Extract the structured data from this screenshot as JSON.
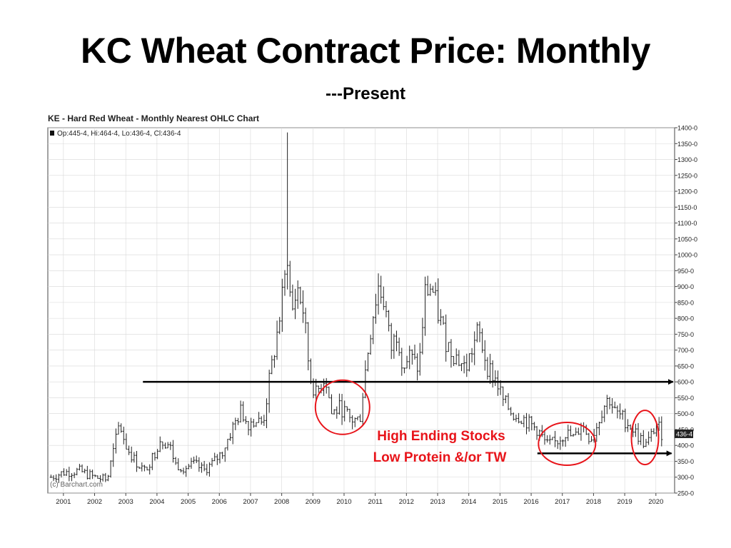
{
  "slide": {
    "title": "KC Wheat Contract Price: Monthly",
    "subtitle": "---Present"
  },
  "colors": {
    "price_bars": "#222222",
    "annotation": "#e8141a",
    "reference_line": "#000000",
    "grid": "#d8d8d8"
  },
  "chart_data": {
    "type": "ohlc",
    "title": "KE - Hard Red Wheat - Monthly Nearest OHLC Chart",
    "legend_text": "Op:445-4, Hi:464-4, Lo:436-4, Cl:436-4",
    "watermark": "(c) Barchart.com",
    "last_price_label": "436-4",
    "xlim": [
      2000.5,
      2020.6
    ],
    "ylim": [
      250,
      1400
    ],
    "x_ticks": [
      2001,
      2002,
      2003,
      2004,
      2005,
      2006,
      2007,
      2008,
      2009,
      2010,
      2011,
      2012,
      2013,
      2014,
      2015,
      2016,
      2017,
      2018,
      2019,
      2020
    ],
    "y_ticks": [
      250,
      300,
      350,
      400,
      450,
      500,
      550,
      600,
      650,
      700,
      750,
      800,
      850,
      900,
      950,
      1000,
      1050,
      1100,
      1150,
      1200,
      1250,
      1300,
      1350,
      1400
    ],
    "y_tick_labels": [
      "250-0",
      "300-0",
      "350-0",
      "400-0",
      "450-0",
      "500-0",
      "550-0",
      "600-0",
      "650-0",
      "700-0",
      "750-0",
      "800-0",
      "850-0",
      "900-0",
      "950-0",
      "1000-0",
      "1050-0",
      "1100-0",
      "1150-0",
      "1200-0",
      "1250-0",
      "1300-0",
      "1350-0",
      "1400-0"
    ],
    "y_axis_side": "right",
    "grid": true,
    "close_anchors": [
      [
        2000.6,
        300
      ],
      [
        2001.0,
        315
      ],
      [
        2001.5,
        320
      ],
      [
        2002.0,
        300
      ],
      [
        2002.4,
        290
      ],
      [
        2002.6,
        380
      ],
      [
        2002.8,
        470
      ],
      [
        2003.0,
        400
      ],
      [
        2003.3,
        350
      ],
      [
        2003.6,
        320
      ],
      [
        2003.9,
        370
      ],
      [
        2004.1,
        420
      ],
      [
        2004.4,
        400
      ],
      [
        2004.6,
        340
      ],
      [
        2004.9,
        330
      ],
      [
        2005.2,
        340
      ],
      [
        2005.5,
        320
      ],
      [
        2005.8,
        345
      ],
      [
        2006.1,
        380
      ],
      [
        2006.4,
        450
      ],
      [
        2006.7,
        510
      ],
      [
        2006.9,
        470
      ],
      [
        2007.1,
        480
      ],
      [
        2007.4,
        470
      ],
      [
        2007.6,
        600
      ],
      [
        2007.9,
        780
      ],
      [
        2008.1,
        920
      ],
      [
        2008.2,
        1020
      ],
      [
        2008.3,
        800
      ],
      [
        2008.5,
        900
      ],
      [
        2008.7,
        820
      ],
      [
        2008.9,
        620
      ],
      [
        2009.1,
        560
      ],
      [
        2009.4,
        620
      ],
      [
        2009.6,
        500
      ],
      [
        2009.9,
        520
      ],
      [
        2010.2,
        480
      ],
      [
        2010.5,
        480
      ],
      [
        2010.7,
        650
      ],
      [
        2010.9,
        800
      ],
      [
        2011.1,
        900
      ],
      [
        2011.3,
        850
      ],
      [
        2011.5,
        700
      ],
      [
        2011.7,
        760
      ],
      [
        2011.9,
        650
      ],
      [
        2012.1,
        680
      ],
      [
        2012.4,
        640
      ],
      [
        2012.6,
        880
      ],
      [
        2012.8,
        900
      ],
      [
        2013.0,
        820
      ],
      [
        2013.3,
        720
      ],
      [
        2013.6,
        680
      ],
      [
        2013.9,
        640
      ],
      [
        2014.1,
        700
      ],
      [
        2014.3,
        760
      ],
      [
        2014.6,
        650
      ],
      [
        2014.9,
        600
      ],
      [
        2015.1,
        540
      ],
      [
        2015.4,
        500
      ],
      [
        2015.7,
        490
      ],
      [
        2015.9,
        470
      ],
      [
        2016.2,
        450
      ],
      [
        2016.5,
        400
      ],
      [
        2016.8,
        410
      ],
      [
        2017.1,
        440
      ],
      [
        2017.4,
        420
      ],
      [
        2017.6,
        470
      ],
      [
        2017.9,
        420
      ],
      [
        2018.1,
        460
      ],
      [
        2018.3,
        520
      ],
      [
        2018.5,
        550
      ],
      [
        2018.7,
        500
      ],
      [
        2018.9,
        490
      ],
      [
        2019.2,
        460
      ],
      [
        2019.5,
        420
      ],
      [
        2019.7,
        400
      ],
      [
        2019.9,
        440
      ],
      [
        2020.0,
        470
      ],
      [
        2020.2,
        436
      ]
    ],
    "annotations": {
      "stocks_text": "High Ending Stocks",
      "protein_text": "Low Protein &/or TW",
      "reference_line_level": 600,
      "lower_line_level": 375,
      "circles": [
        {
          "name": "2009-2010",
          "x_center": 2009.95,
          "y_center": 520
        },
        {
          "name": "2016-2018",
          "x_center": 2017.15,
          "y_center": 405
        },
        {
          "name": "2019-2020",
          "x_center": 2019.65,
          "y_center": 425
        }
      ]
    }
  }
}
